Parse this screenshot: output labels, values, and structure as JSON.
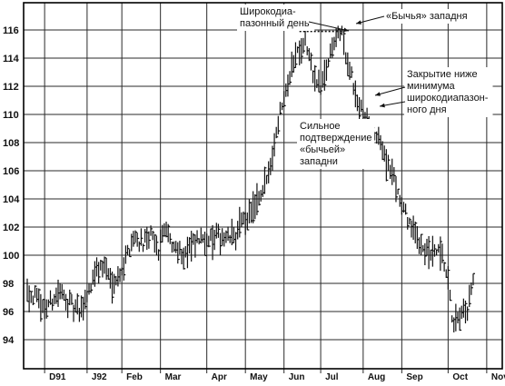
{
  "chart_data": {
    "type": "bar",
    "subtype": "ohlc-daily",
    "title": "",
    "xlabel": "",
    "ylabel": "",
    "ylim": [
      92,
      118
    ],
    "y_ticks": [
      94,
      96,
      98,
      100,
      102,
      104,
      106,
      108,
      110,
      112,
      114,
      116
    ],
    "x_ticks": [
      "D91",
      "J92",
      "Feb",
      "Mar",
      "Apr",
      "May",
      "Jun",
      "Jul",
      "Aug",
      "Sep",
      "Oct",
      "Nov"
    ],
    "x_tick_index": [
      9,
      31,
      49,
      69,
      93,
      113,
      133,
      152,
      174,
      194,
      218,
      238
    ],
    "grid": true,
    "resistance_level": 115.9,
    "annotations": [
      {
        "id": "wide-range-day",
        "lines": [
          "Широкодиа-",
          "пазонный день"
        ]
      },
      {
        "id": "bullish-gap",
        "lines": [
          "«Бычья» западня"
        ]
      },
      {
        "id": "close-below",
        "lines": [
          "Закрытие ниже",
          "минимума",
          "широкодиапазон-",
          "ного дня"
        ]
      },
      {
        "id": "strong-confirmation",
        "lines": [
          "Сильное",
          "подтверждение",
          "«бычьей»",
          "западни"
        ]
      }
    ],
    "keypoints": [
      [
        0,
        97.5
      ],
      [
        4,
        97.0
      ],
      [
        8,
        96.2
      ],
      [
        12,
        96.6
      ],
      [
        16,
        97.4
      ],
      [
        20,
        97.0
      ],
      [
        24,
        96.2
      ],
      [
        27,
        95.9
      ],
      [
        30,
        96.6
      ],
      [
        33,
        98.0
      ],
      [
        36,
        98.9
      ],
      [
        40,
        99.3
      ],
      [
        44,
        98.1
      ],
      [
        48,
        98.7
      ],
      [
        51,
        99.9
      ],
      [
        54,
        100.9
      ],
      [
        56,
        101.3
      ],
      [
        60,
        100.9
      ],
      [
        64,
        101.4
      ],
      [
        68,
        100.3
      ],
      [
        70,
        101.8
      ],
      [
        72,
        101.6
      ],
      [
        76,
        100.6
      ],
      [
        80,
        100.2
      ],
      [
        85,
        100.5
      ],
      [
        88,
        101.0
      ],
      [
        92,
        101.3
      ],
      [
        96,
        101.1
      ],
      [
        100,
        101.4
      ],
      [
        104,
        101.2
      ],
      [
        108,
        101.5
      ],
      [
        112,
        102.4
      ],
      [
        115,
        102.9
      ],
      [
        118,
        103.4
      ],
      [
        121,
        104.0
      ],
      [
        124,
        105.5
      ],
      [
        127,
        107.0
      ],
      [
        129,
        109.0
      ],
      [
        132,
        110.8
      ],
      [
        135,
        112.5
      ],
      [
        138,
        114.0
      ],
      [
        141,
        114.8
      ],
      [
        144,
        115.2
      ],
      [
        146,
        114.2
      ],
      [
        149,
        112.5
      ],
      [
        152,
        111.8
      ],
      [
        155,
        113.2
      ],
      [
        158,
        114.8
      ],
      [
        161,
        115.6
      ],
      [
        163,
        115.9
      ],
      [
        165,
        114.2
      ],
      [
        168,
        112.8
      ],
      [
        170,
        111.0
      ],
      [
        173,
        110.4
      ],
      [
        176,
        109.4
      ],
      [
        179,
        108.8
      ],
      [
        182,
        108.2
      ],
      [
        185,
        107.2
      ],
      [
        188,
        106.2
      ],
      [
        191,
        105.0
      ],
      [
        194,
        103.5
      ],
      [
        197,
        102.6
      ],
      [
        200,
        101.6
      ],
      [
        203,
        101.2
      ],
      [
        206,
        100.4
      ],
      [
        209,
        100.0
      ],
      [
        212,
        100.3
      ],
      [
        215,
        99.6
      ],
      [
        218,
        98.2
      ],
      [
        220,
        95.6
      ],
      [
        222,
        95.0
      ],
      [
        224,
        95.4
      ],
      [
        226,
        95.8
      ],
      [
        228,
        96.2
      ],
      [
        230,
        97.4
      ],
      [
        231,
        98.1
      ]
    ]
  }
}
